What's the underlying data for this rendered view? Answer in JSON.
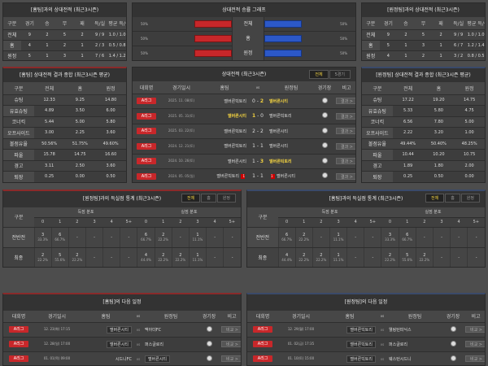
{
  "h2h_home": {
    "title": "[홈팀]과의 상대전적 (최근3시즌)",
    "cols": [
      "구분",
      "경기",
      "승",
      "무",
      "패",
      "득/실",
      "평균 득/실"
    ],
    "rows": [
      [
        "전체",
        "9",
        "2",
        "5",
        "2",
        "9 / 9",
        "1.0 / 1.0"
      ],
      [
        "홈",
        "4",
        "1",
        "2",
        "1",
        "2 / 3",
        "0.5 / 0.8"
      ],
      [
        "원정",
        "5",
        "1",
        "3",
        "1",
        "7 / 6",
        "1.4 / 1.2"
      ]
    ]
  },
  "h2h_away": {
    "title": "[원정팀]과의 상대전적 (최근3시즌)",
    "cols": [
      "구분",
      "경기",
      "승",
      "무",
      "패",
      "득/실",
      "평균 득/실"
    ],
    "rows": [
      [
        "전체",
        "9",
        "2",
        "5",
        "2",
        "9 / 9",
        "1.0 / 1.0"
      ],
      [
        "홈",
        "5",
        "1",
        "3",
        "1",
        "6 / 7",
        "1.2 / 1.4"
      ],
      [
        "원정",
        "4",
        "1",
        "2",
        "1",
        "3 / 2",
        "0.8 / 0.5"
      ]
    ]
  },
  "graph": {
    "title": "상대전적 승률 그래프",
    "rows": [
      {
        "label": "전체",
        "left": "50%",
        "right": "50%",
        "left_value": 50,
        "right_value": 50
      },
      {
        "label": "홈",
        "left": "50%",
        "right": "50%",
        "left_value": 50,
        "right_value": 50
      },
      {
        "label": "원정",
        "left": "50%",
        "right": "50%",
        "left_value": 50,
        "right_value": 50
      }
    ],
    "colors": {
      "home": "#c8272a",
      "away": "#2c58c8"
    }
  },
  "stats_home": {
    "title": "[홈팀] 상대전적 결과 종합 (최근3시즌 평균)",
    "cols": [
      "구분",
      "전체",
      "홈",
      "원정"
    ],
    "rows": [
      [
        "슈팅",
        "12.33",
        "9.25",
        "14.80"
      ],
      [
        "유효슈팅",
        "4.89",
        "3.50",
        "6.00"
      ],
      [
        "코너킥",
        "5.44",
        "5.00",
        "5.80"
      ],
      [
        "오프사이드",
        "3.00",
        "2.25",
        "3.60"
      ],
      [
        "볼점유율",
        "50.56%",
        "51.75%",
        "49.60%"
      ],
      [
        "파울",
        "15.78",
        "14.75",
        "16.60"
      ],
      [
        "경고",
        "3.11",
        "2.50",
        "3.60"
      ],
      [
        "퇴장",
        "0.25",
        "0.00",
        "0.50"
      ]
    ]
  },
  "stats_away": {
    "title": "[원정팀] 상대전적 결과 종합 (최근3시즌 평균)",
    "cols": [
      "구분",
      "전체",
      "홈",
      "원정"
    ],
    "rows": [
      [
        "슈팅",
        "17.22",
        "19.20",
        "14.75"
      ],
      [
        "유효슈팅",
        "5.33",
        "5.80",
        "4.75"
      ],
      [
        "코너킥",
        "6.56",
        "7.80",
        "5.00"
      ],
      [
        "오프사이드",
        "2.22",
        "3.20",
        "1.00"
      ],
      [
        "볼점유율",
        "49.44%",
        "50.40%",
        "48.25%"
      ],
      [
        "파울",
        "10.44",
        "10.20",
        "10.75"
      ],
      [
        "경고",
        "1.89",
        "1.80",
        "2.00"
      ],
      [
        "퇴장",
        "0.25",
        "0.50",
        "0.00"
      ]
    ]
  },
  "h2h_list": {
    "title": "상대전적 (최근3시즌)",
    "tabs": [
      "전체",
      "5경기"
    ],
    "cols": [
      "대회명",
      "경기일시",
      "홈팀",
      "vs",
      "원정팀",
      "경기장",
      "비고"
    ],
    "result_label": "결과 >",
    "matches": [
      {
        "league": "A리그",
        "date": "2025. 11. 08(토)",
        "home": "멜버른빅토리",
        "hs": "0",
        "as": "2",
        "away": "멜버른시티",
        "win": "away"
      },
      {
        "league": "A리그",
        "date": "2025. 05. 31(토)",
        "home": "멜버른시티",
        "hs": "1",
        "as": "0",
        "away": "멜버른빅토리",
        "win": "home"
      },
      {
        "league": "A리그",
        "date": "2025. 03. 22(토)",
        "home": "멜버른빅토리",
        "hs": "2",
        "as": "2",
        "away": "멜버른시티",
        "win": ""
      },
      {
        "league": "A리그",
        "date": "2024. 12. 21(토)",
        "home": "멜버른빅토리",
        "hs": "1",
        "as": "1",
        "away": "멜버른시티",
        "win": ""
      },
      {
        "league": "A리그",
        "date": "2024. 10. 26(토)",
        "home": "멜버른시티",
        "hs": "1",
        "as": "3",
        "away": "멜버른빅토리",
        "win": "away"
      },
      {
        "league": "A리그",
        "date": "2024. 05. 05(일)",
        "home": "멜버른빅토리",
        "hs": "1",
        "as": "1",
        "away": "멜버른시티",
        "win": "",
        "home_red": "1",
        "away_red": "1"
      }
    ]
  },
  "goals_left": {
    "title": "[원정팀]과의 득실점 통계 (최근3시즌)",
    "tabs": [
      "전체",
      "홈",
      "원정"
    ],
    "col0": "구분",
    "group_for": "득점 분포",
    "group_against": "실점 분포",
    "buckets": [
      "0",
      "1",
      "2",
      "3",
      "4",
      "5+"
    ],
    "rows": [
      {
        "label": "전반전",
        "for": [
          [
            "3",
            "33.3%"
          ],
          [
            "6",
            "66.7%"
          ],
          [
            "-",
            ""
          ],
          [
            "-",
            ""
          ],
          [
            "-",
            ""
          ],
          [
            "-",
            ""
          ]
        ],
        "against": [
          [
            "6",
            "66.7%"
          ],
          [
            "2",
            "22.2%"
          ],
          [
            "-",
            ""
          ],
          [
            "1",
            "11.1%"
          ],
          [
            "-",
            ""
          ],
          [
            "-",
            ""
          ]
        ]
      },
      {
        "label": "최종",
        "for": [
          [
            "2",
            "22.2%"
          ],
          [
            "5",
            "55.6%"
          ],
          [
            "2",
            "22.2%"
          ],
          [
            "-",
            ""
          ],
          [
            "-",
            ""
          ],
          [
            "-",
            ""
          ]
        ],
        "against": [
          [
            "4",
            "44.4%"
          ],
          [
            "2",
            "22.2%"
          ],
          [
            "2",
            "22.2%"
          ],
          [
            "1",
            "11.1%"
          ],
          [
            "-",
            ""
          ],
          [
            "-",
            ""
          ]
        ]
      }
    ]
  },
  "goals_right": {
    "title": "[홈팀]과의 득실점 통계 (최근3시즌)",
    "tabs": [
      "전체",
      "홈",
      "원정"
    ],
    "col0": "구분",
    "group_for": "득점 분포",
    "group_against": "실점 분포",
    "buckets": [
      "0",
      "1",
      "2",
      "3",
      "4",
      "5+"
    ],
    "rows": [
      {
        "label": "전반전",
        "for": [
          [
            "6",
            "66.7%"
          ],
          [
            "2",
            "22.2%"
          ],
          [
            "-",
            ""
          ],
          [
            "1",
            "11.1%"
          ],
          [
            "-",
            ""
          ],
          [
            "-",
            ""
          ]
        ],
        "against": [
          [
            "3",
            "33.3%"
          ],
          [
            "6",
            "66.7%"
          ],
          [
            "-",
            ""
          ],
          [
            "-",
            ""
          ],
          [
            "-",
            ""
          ],
          [
            "-",
            ""
          ]
        ]
      },
      {
        "label": "최종",
        "for": [
          [
            "4",
            "44.4%"
          ],
          [
            "2",
            "22.2%"
          ],
          [
            "2",
            "22.2%"
          ],
          [
            "1",
            "11.1%"
          ],
          [
            "-",
            ""
          ],
          [
            "-",
            ""
          ]
        ],
        "against": [
          [
            "2",
            "22.2%"
          ],
          [
            "5",
            "55.6%"
          ],
          [
            "2",
            "22.2%"
          ],
          [
            "-",
            ""
          ],
          [
            "-",
            ""
          ],
          [
            "-",
            ""
          ]
        ]
      }
    ]
  },
  "next_home": {
    "title": "[홈팀]의 다음 일정",
    "cols": [
      "대회명",
      "경기일시",
      "홈팀",
      "vs",
      "원정팀",
      "경기장",
      "비고"
    ],
    "btn": "비교 >",
    "matches": [
      {
        "league": "A리그",
        "date": "12. 23(화) 17:15",
        "home": "멜버른시티",
        "away": "맥아더FC",
        "hl": "home"
      },
      {
        "league": "A리그",
        "date": "12. 28(일) 17:00",
        "home": "멜버른시티",
        "away": "퍼스글로리",
        "hl": "home"
      },
      {
        "league": "A리그",
        "date": "01. 01(목) 09:00",
        "home": "시드니FC",
        "away": "멜버른시티",
        "hl": "away"
      }
    ]
  },
  "next_away": {
    "title": "[원정팀]의 다음 일정",
    "cols": [
      "대회명",
      "경기일시",
      "홈팀",
      "vs",
      "원정팀",
      "경기장",
      "비고"
    ],
    "btn": "비교 >",
    "matches": [
      {
        "league": "A리그",
        "date": "12. 29(월) 17:00",
        "home": "멜버른빅토리",
        "away": "웰링턴피닉스",
        "hl": "home"
      },
      {
        "league": "A리그",
        "date": "01. 02(금) 17:35",
        "home": "멜버른빅토리",
        "away": "퍼스글로리",
        "hl": "home"
      },
      {
        "league": "A리그",
        "date": "01. 10(토) 15:00",
        "home": "멜버른빅토리",
        "away": "웨스턴시드니",
        "hl": "home"
      }
    ]
  }
}
